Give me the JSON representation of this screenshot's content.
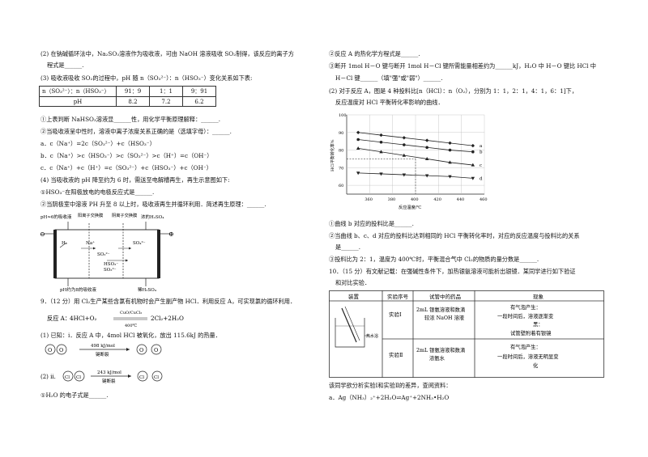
{
  "left": {
    "p2_line1": "(2) 在钠碱循环法中，Na₂SO₃溶液作为吸收液，可由 NaOH 溶液吸收 SO₂制得，该反应的离子方",
    "p2_line2": "程式是______.",
    "p3": "(3) 吸收液吸收 SO₂的过程中，pH 随 n（SO₃²⁻）：n（HSO₃⁻）变化关系如下表:",
    "table1": {
      "row_label": "n（SO₃²⁻）：n（HSO₃⁻）",
      "ratios": [
        "91：9",
        "1：1",
        "9：91"
      ],
      "ph_label": "pH",
      "ph": [
        "8.2",
        "7.2",
        "6.2"
      ]
    },
    "q1": "①上表判断 NaHSO₃溶液显______性，用化学平衡原理解释：______.",
    "q2": "②当吸收液呈中性时，溶液中离子浓度关系正确的是（选填字母）：______.",
    "optA": "a．c（Na⁺）=2c（SO₃²⁻）+c（HSO₃⁻）",
    "optB": "b．c（Na⁺）>c（HSO₃⁻）>c（SO₃²⁻）>c（H⁺）=c（OH⁻）",
    "optC": "c．c（Na⁺）+c（H⁺）=c（SO₃²⁻）+c（HSO₃⁻）+c（OH⁻）",
    "p4": "(4) 当吸收液的 pH 降至约为 6 时，需送至电解槽再生，再生示意图如下:",
    "q4a": "①HSO₃⁻在阳极放电的电极反应式是______.",
    "q4b": "②当阴极室中溶液 PH 升至 8 以上时，吸收液再生并循环利用．简述再生原理：______.",
    "diagram": {
      "top_left": "pH≈6的吸收液",
      "cation_membrane": "阳离子交换膜",
      "anion_membrane": "阴离子交换膜",
      "top_right": "浓的H₂SO₄",
      "minus": "⊖",
      "plus": "⊕",
      "h2": "H₂",
      "na": "Na⁺",
      "so3": "SO₃²⁻",
      "hso3": "HSO₃⁻",
      "so3b": "SO₃²⁻",
      "so4": "SO₄²⁻",
      "bottom_left": "pH约为8的吸收液",
      "bottom_right": "稀H₂SO₄"
    },
    "q9": "9．（12 分）用 Cl₂生产某些含氯有机物时会产生副产物 HCl．利用反应 A，可实现氯的循环利用．",
    "reactionA_label": "反应 A：",
    "reactionA_left": "4HCl+O₂",
    "reactionA_catalyst": "CuO/CuCl₂",
    "reactionA_temp": "400℃",
    "reactionA_right": "2Cl₂+2H₂O",
    "known": "(1) 已知：i．反应 A 中，4mol HCl 被氧化，放出 115.6kJ 的热量．",
    "energy1": "498 kJ/mol",
    "energy1_note": "键断裂",
    "energy2": "243 kJ/mol",
    "energy2_note": "键断裂",
    "ii_label": "(2) ii.",
    "atom_o": "O",
    "atom_cl": "Cl",
    "q_h2o": "①H₂O 的电子式是______."
  },
  "right": {
    "r1": "②反应 A 的热化学方程式是______.",
    "r2a": "③断开 1mol H－O 键与断开 1mol H－Cl 键所需能量相差约为______kJ，H₂O 中 H－O 键比 HCl 中",
    "r2b": "H－Cl 键______（填\"强\"或\"弱\"）______.",
    "r3a": "(2) 对于反应 A，图是 4 种投料比[n（HCl）：n（O₂），分别为 1：1，2：1，4：1，6：1]下，",
    "r3b": "反应温度对 HCl 平衡转化率影响的曲线．",
    "r4": "①曲线 b 对应的投料比是______.",
    "r5a": "②当曲线 b、c、d 对应的投料比达到相同的 HCl 平衡转化率时，对应的反应温度与投料比的关系",
    "r5b": "是______.",
    "r6": "③投料比为 2：1，温度为 400℃时，平衡混合气中 Cl₂的物质的量分数是______.",
    "r7a": "10．（15 分）有文献记载：在强碱性条件下，加热银氨溶液可能析出银镜．某同学进行如下验证",
    "r7b": "和对比实验．",
    "table2": {
      "headers": [
        "装置",
        "实验序号",
        "试管中的药品",
        "现象"
      ],
      "apparatus_label": "热水浴",
      "exp1": {
        "no": "实验Ⅰ",
        "reagent": [
          "2mL 银氨溶液和数滴",
          "较浓 NaOH 溶液"
        ],
        "phenomenon": [
          "有气泡产生：",
          "一段时间后，溶液逐渐变",
          "黑：",
          "试管壁附着有银镜"
        ]
      },
      "exp2": {
        "no": "实验Ⅱ",
        "reagent": [
          "2mL 银氨溶液和数滴",
          "浓氨水"
        ],
        "phenomenon": [
          "有气泡产生：",
          "一段时间后，溶液无明显变",
          "化"
        ]
      }
    },
    "r8": "该同学欲分析实验Ⅰ和实验Ⅱ的差异，查阅资料：",
    "r9": "a．Ag（NH₃）₂⁺+2H₂O⇌Ag⁺+2NH₃•H₂O"
  },
  "chart_data": {
    "type": "line",
    "ylabel": "HCl平衡转化率%",
    "xlabel": "反应温度/℃",
    "x_ticks": [
      360,
      380,
      400,
      420,
      440,
      460
    ],
    "y_ticks": [
      60,
      70,
      80,
      90,
      100
    ],
    "xlim": [
      340,
      460
    ],
    "ylim": [
      55,
      100
    ],
    "reference": {
      "x": 400,
      "y": 75
    },
    "series": [
      {
        "name": "a",
        "marker": "diamond",
        "x": [
          350,
          370,
          390,
          410,
          430,
          450
        ],
        "values": [
          90,
          88.5,
          87,
          85.5,
          84,
          82.5
        ]
      },
      {
        "name": "b",
        "marker": "circle",
        "x": [
          350,
          370,
          390,
          410,
          430,
          450
        ],
        "values": [
          86,
          84.5,
          83,
          81.5,
          80,
          79
        ]
      },
      {
        "name": "c",
        "marker": "triangle",
        "x": [
          350,
          370,
          390,
          410,
          430,
          450
        ],
        "values": [
          81,
          79,
          77,
          75,
          73,
          71.5
        ]
      },
      {
        "name": "d",
        "marker": "triangle-down",
        "x": [
          350,
          370,
          390,
          410,
          430,
          450
        ],
        "values": [
          67,
          66.5,
          66,
          65.5,
          65,
          64
        ]
      }
    ],
    "curve_labels": [
      "d",
      "c",
      "b",
      "a"
    ]
  }
}
